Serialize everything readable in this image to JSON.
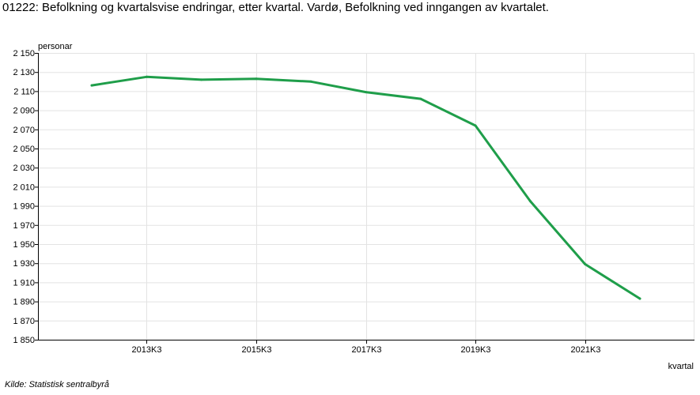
{
  "title": "01222: Befolkning og kvartalsvise endringar, etter kvartal. Vardø, Befolkning ved inngangen av kvartalet.",
  "source": "Kilde:  Statistisk sentralbyrå",
  "chart_data": {
    "type": "line",
    "title": "01222: Befolkning og kvartalsvise endringar, etter kvartal. Vardø, Befolkning ved inngangen av kvartalet.",
    "ylabel": "personar",
    "xlabel": "kvartal",
    "ylim": [
      1850,
      2150
    ],
    "yticks": [
      1850,
      1870,
      1890,
      1910,
      1930,
      1950,
      1970,
      1990,
      2010,
      2030,
      2050,
      2070,
      2090,
      2110,
      2130,
      2150
    ],
    "ytick_labels": [
      "1 850",
      "1 870",
      "1 890",
      "1 910",
      "1 930",
      "1 950",
      "1 970",
      "1 990",
      "2 010",
      "2 030",
      "2 050",
      "2 070",
      "2 090",
      "2 110",
      "2 130",
      "2 150"
    ],
    "x": [
      "2012K3",
      "2013K3",
      "2014K3",
      "2015K3",
      "2016K3",
      "2017K3",
      "2018K3",
      "2019K3",
      "2020K3",
      "2021K3",
      "2022K3"
    ],
    "xtick_labels": [
      "2013K3",
      "2015K3",
      "2017K3",
      "2019K3",
      "2021K3"
    ],
    "series": [
      {
        "values": [
          2116,
          2125,
          2122,
          2123,
          2120,
          2109,
          2102,
          2074,
          1995,
          1929,
          1893
        ]
      }
    ],
    "grid": true,
    "line_color": "#1f9e4a",
    "grid_color": "#e3e3e3"
  }
}
